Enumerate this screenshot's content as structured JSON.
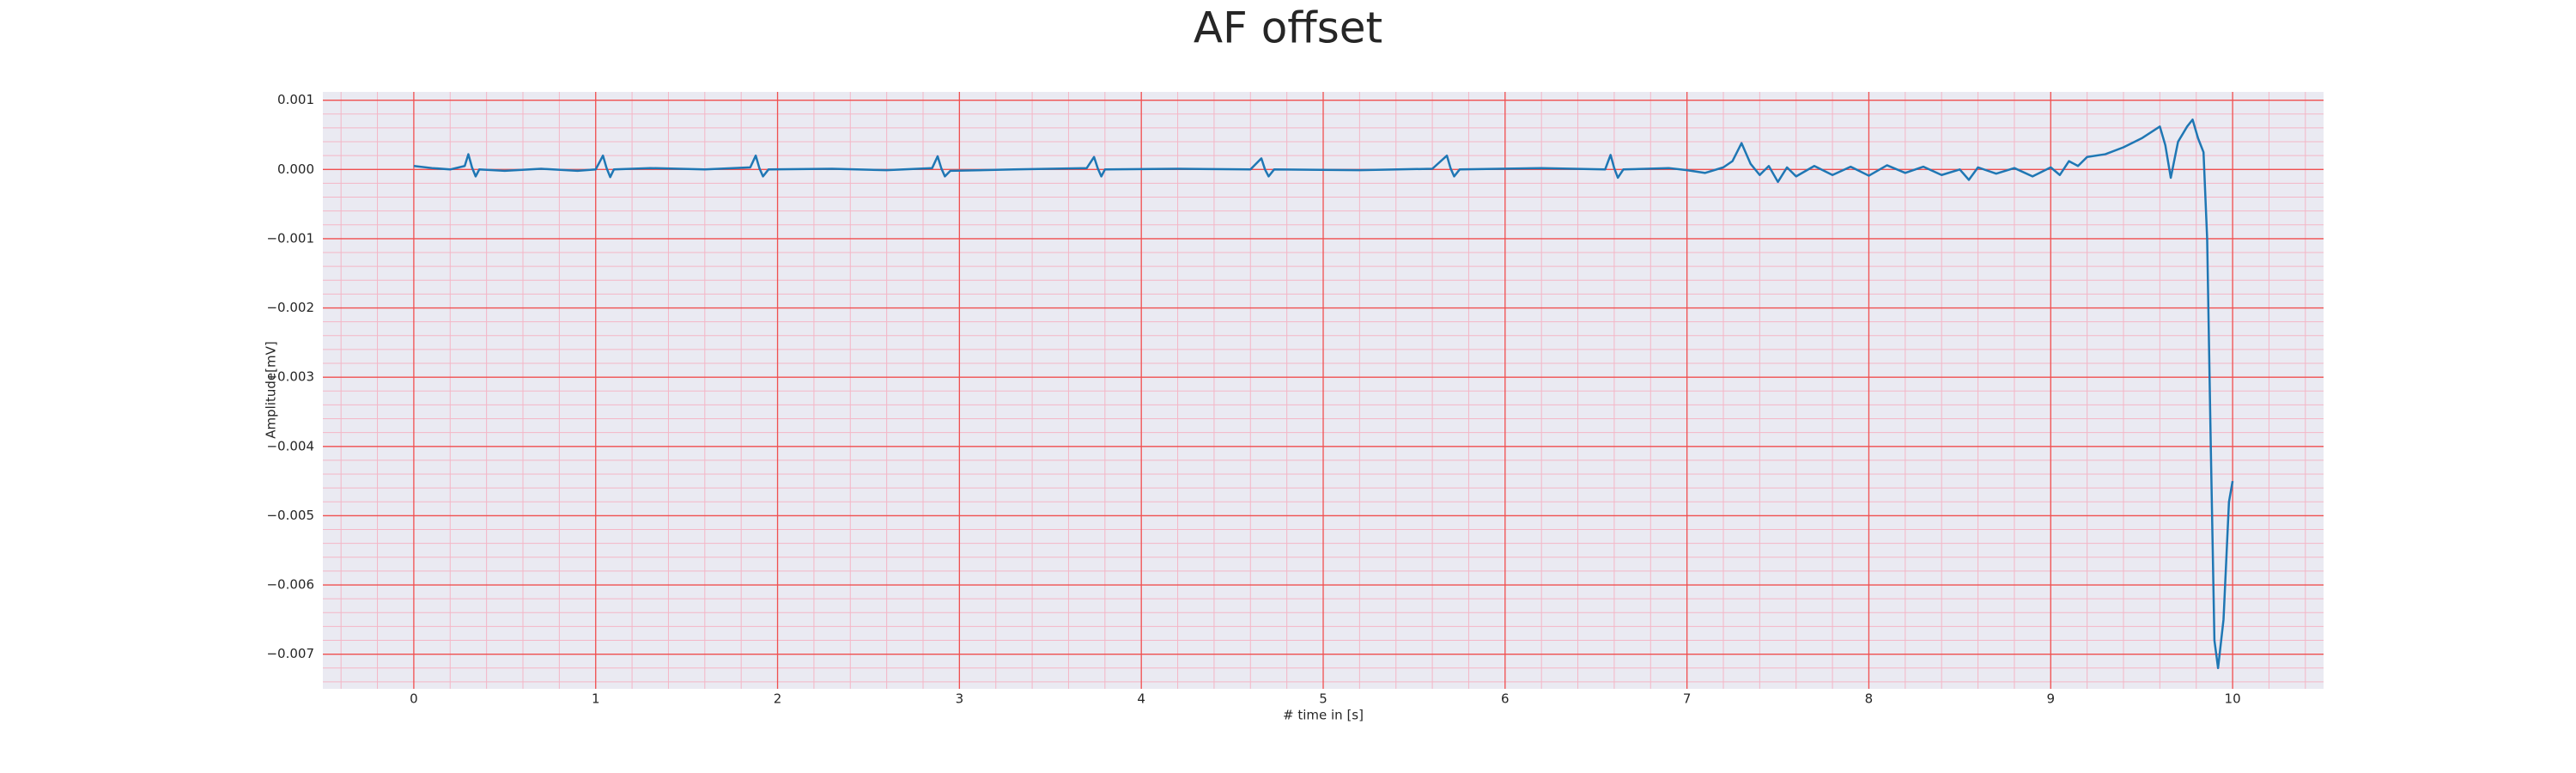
{
  "chart_data": {
    "type": "line",
    "title": "AF offset",
    "x_label": "# time in [s]",
    "y_label": "Amplitude[mV]",
    "x": [
      0,
      0.1,
      0.2,
      0.28,
      0.3,
      0.32,
      0.34,
      0.36,
      0.5,
      0.7,
      0.9,
      1.0,
      1.04,
      1.06,
      1.08,
      1.1,
      1.3,
      1.6,
      1.85,
      1.88,
      1.9,
      1.92,
      1.95,
      2.3,
      2.6,
      2.85,
      2.88,
      2.9,
      2.92,
      2.95,
      3.3,
      3.7,
      3.74,
      3.76,
      3.78,
      3.8,
      4.2,
      4.6,
      4.66,
      4.68,
      4.7,
      4.73,
      5.2,
      5.6,
      5.68,
      5.7,
      5.72,
      5.75,
      6.2,
      6.55,
      6.58,
      6.6,
      6.62,
      6.65,
      6.9,
      7.0,
      7.1,
      7.2,
      7.25,
      7.3,
      7.35,
      7.4,
      7.45,
      7.5,
      7.55,
      7.6,
      7.7,
      7.8,
      7.9,
      8.0,
      8.1,
      8.2,
      8.3,
      8.4,
      8.5,
      8.55,
      8.6,
      8.7,
      8.8,
      8.9,
      9.0,
      9.05,
      9.1,
      9.15,
      9.2,
      9.3,
      9.4,
      9.5,
      9.6,
      9.63,
      9.66,
      9.7,
      9.75,
      9.78,
      9.81,
      9.84,
      9.86,
      9.88,
      9.9,
      9.92,
      9.95,
      9.98,
      10.0
    ],
    "series": [
      {
        "name": "AF offset",
        "color": "#1f77b4",
        "values": [
          5e-05,
          2e-05,
          0.0,
          5e-05,
          0.00022,
          3e-05,
          -0.0001,
          0.0,
          -2e-05,
          1e-05,
          -2e-05,
          0.0,
          0.0002,
          2e-05,
          -0.00011,
          0.0,
          2e-05,
          0.0,
          3e-05,
          0.0002,
          2e-05,
          -0.0001,
          0.0,
          1e-05,
          -1e-05,
          2e-05,
          0.00019,
          2e-05,
          -0.0001,
          -2e-05,
          0.0,
          2e-05,
          0.00018,
          2e-05,
          -0.0001,
          0.0,
          1e-05,
          0.0,
          0.00016,
          0.0,
          -0.0001,
          0.0,
          -1e-05,
          1e-05,
          0.0002,
          2e-05,
          -0.0001,
          0.0,
          2e-05,
          0.0,
          0.00021,
          2e-05,
          -0.00012,
          0.0,
          2e-05,
          -1e-05,
          -5e-05,
          3e-05,
          0.00012,
          0.00038,
          8e-05,
          -8e-05,
          5e-05,
          -0.00018,
          3e-05,
          -0.0001,
          5e-05,
          -8e-05,
          4e-05,
          -9e-05,
          6e-05,
          -5e-05,
          4e-05,
          -8e-05,
          0.0,
          -0.00015,
          3e-05,
          -6e-05,
          2e-05,
          -0.0001,
          3e-05,
          -8e-05,
          0.00012,
          5e-05,
          0.00018,
          0.00022,
          0.00032,
          0.00045,
          0.00062,
          0.00035,
          -0.00012,
          0.0004,
          0.00062,
          0.00072,
          0.00045,
          0.00025,
          -0.001,
          -0.004,
          -0.0068,
          -0.0072,
          -0.0065,
          -0.0048,
          -0.0045
        ]
      }
    ],
    "xlim": [
      -0.5,
      10.5
    ],
    "xticks": [
      0,
      1,
      2,
      3,
      4,
      5,
      6,
      7,
      8,
      9,
      10
    ],
    "ylim": [
      -0.0075,
      0.00112
    ],
    "yticks": [
      0.001,
      {
        "value": 0,
        "label": "0.000"
      },
      {
        "value": -0.001,
        "label": "−0.001"
      },
      {
        "value": -0.002,
        "label": "−0.002"
      },
      {
        "value": -0.003,
        "label": "−0.003"
      },
      {
        "value": -0.004,
        "label": "−0.004"
      },
      {
        "value": -0.005,
        "label": "−0.005"
      },
      {
        "value": -0.006,
        "label": "−0.006"
      },
      {
        "value": -0.007,
        "label": "−0.007"
      }
    ],
    "grid": true,
    "minor_grid": true
  }
}
